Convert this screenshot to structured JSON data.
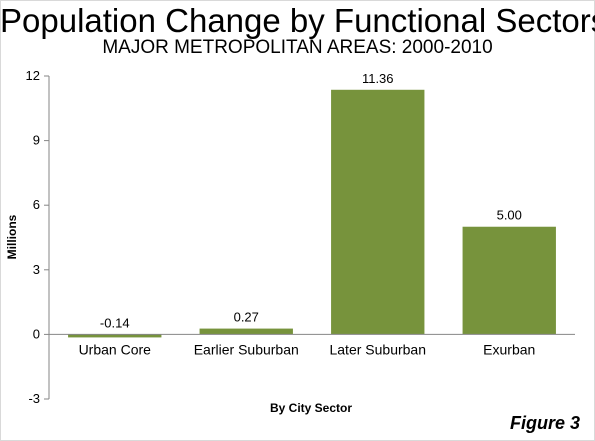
{
  "chart_data": {
    "type": "bar",
    "title": "Population Change by Functional Sectors",
    "subtitle": "MAJOR METROPOLITAN AREAS: 2000-2010",
    "xlabel": "By City Sector",
    "ylabel": "Millions",
    "categories": [
      "Urban Core",
      "Earlier Suburban",
      "Later Suburban",
      "Exurban"
    ],
    "values": [
      -0.14,
      0.27,
      11.36,
      5.0
    ],
    "data_labels": [
      "-0.14",
      "0.27",
      "11.36",
      "5.00"
    ],
    "ylim": [
      -3,
      12
    ],
    "yticks": [
      -3,
      0,
      3,
      6,
      9,
      12
    ],
    "grid": false,
    "legend": "none",
    "bar_color": "#77933c",
    "axis_color": "#868686"
  },
  "figure_label": "Figure 3"
}
